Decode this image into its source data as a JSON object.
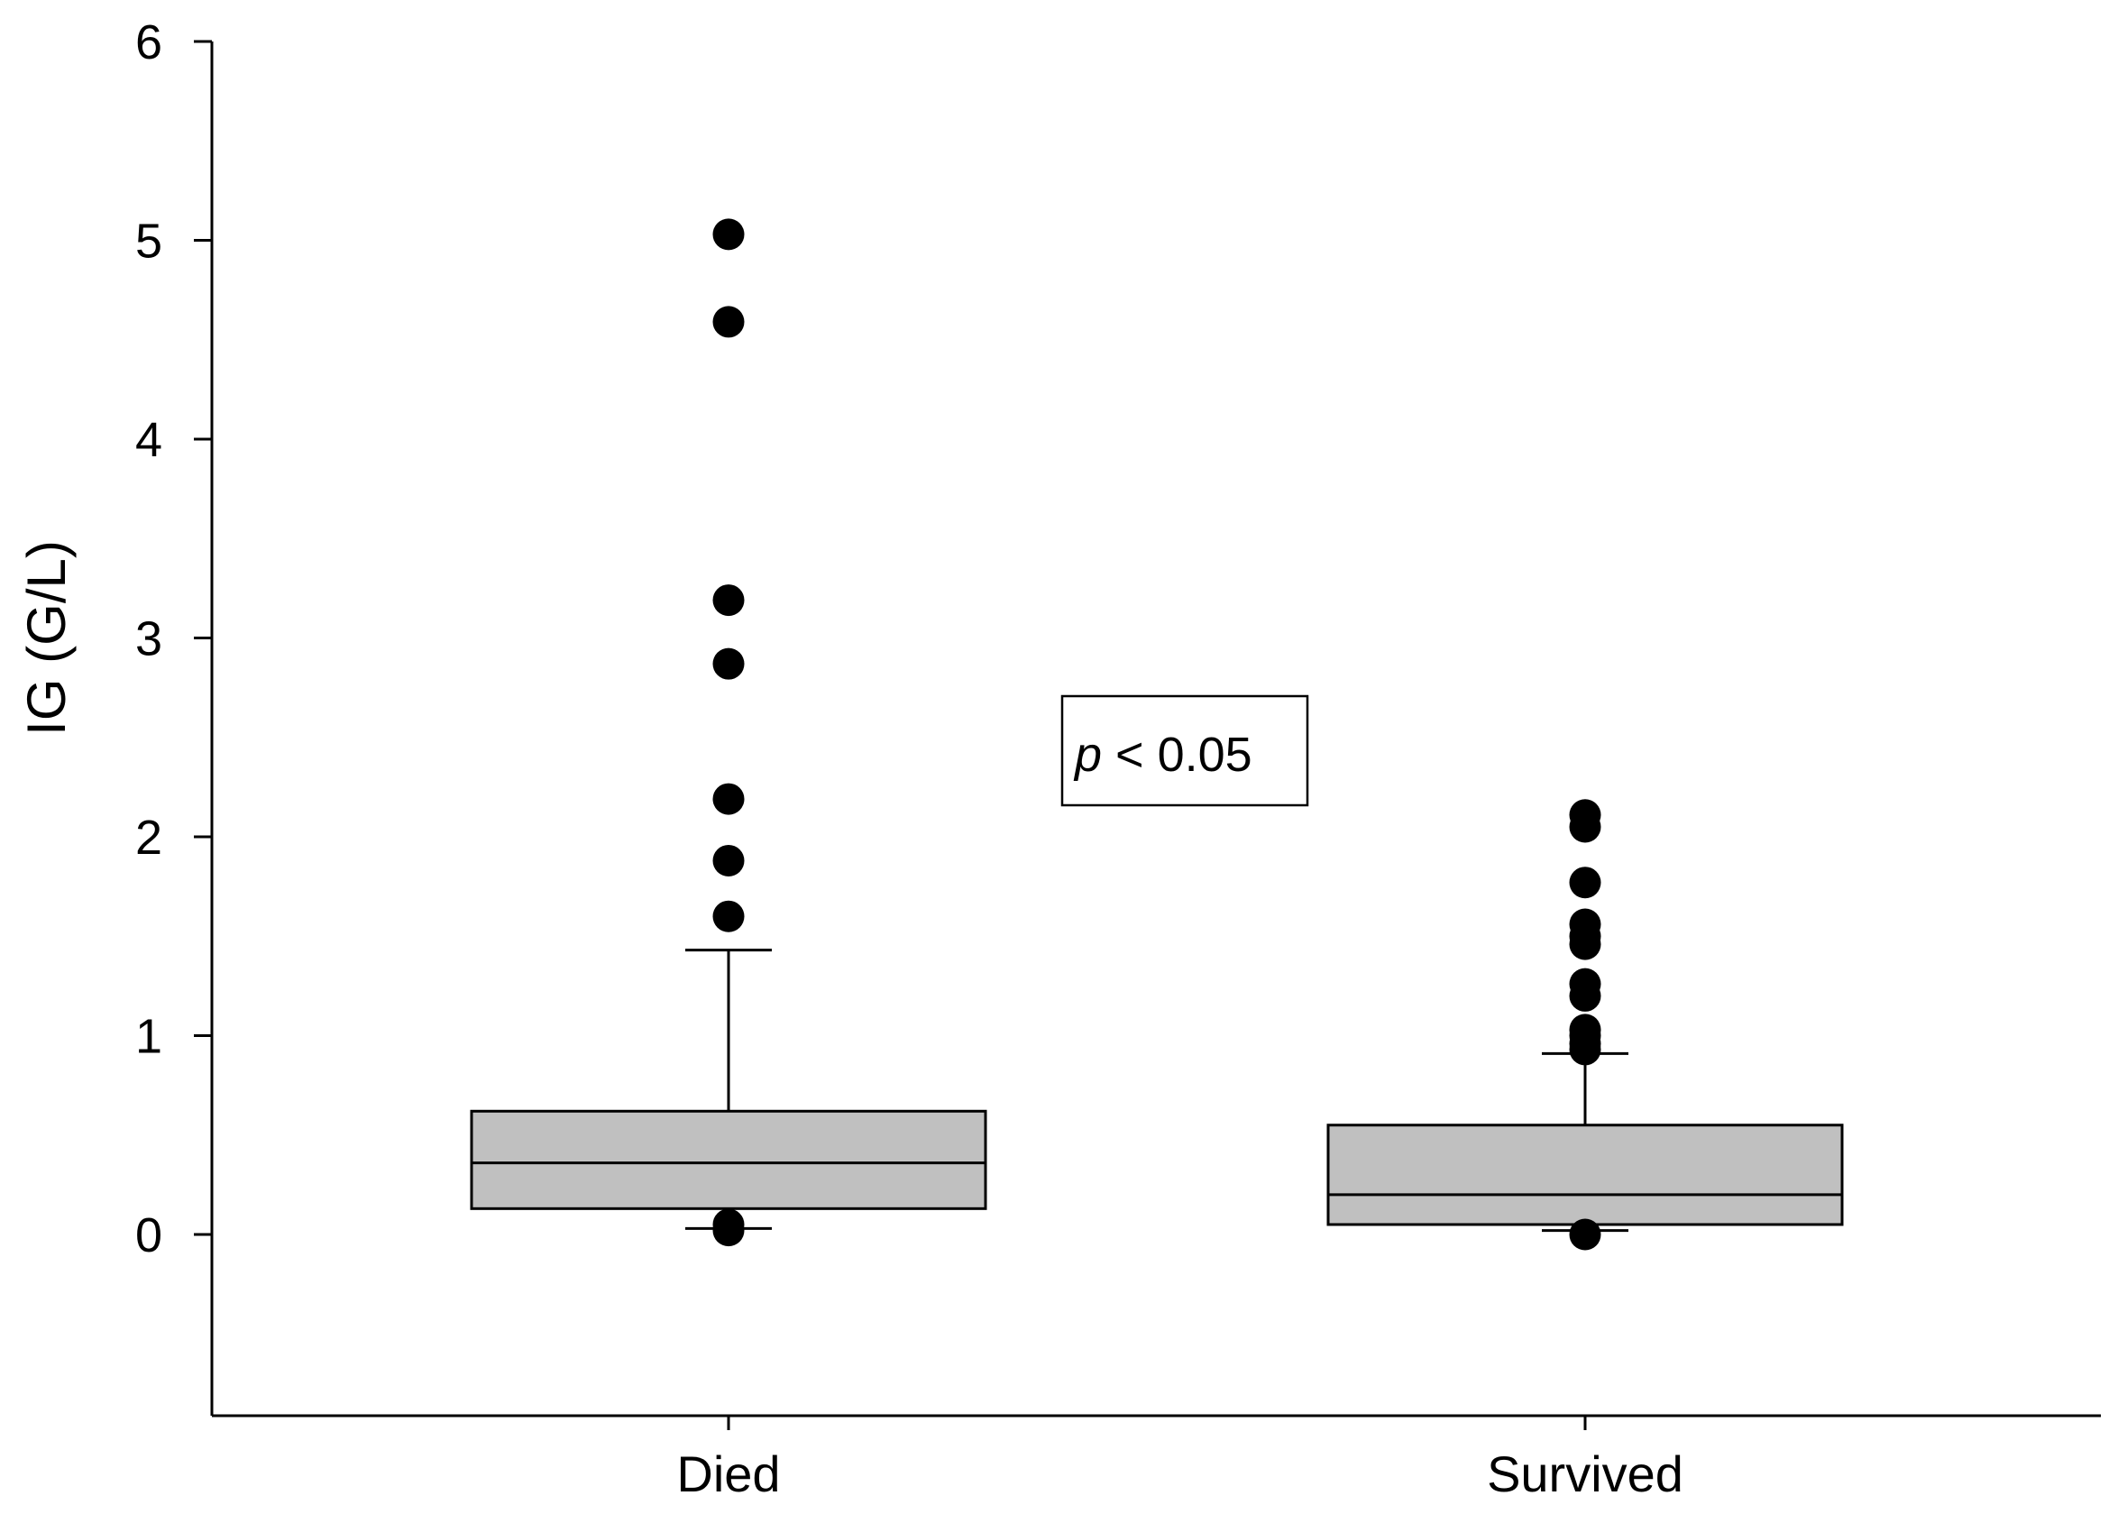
{
  "chart_data": {
    "type": "box",
    "ylabel": "IG (G/L)",
    "xlabel": "",
    "ylim": [
      -0.9,
      6
    ],
    "yticks": [
      0,
      1,
      2,
      3,
      4,
      5,
      6
    ],
    "ytick_labels": [
      "0",
      "1",
      "2",
      "3",
      "4",
      "5",
      "6"
    ],
    "categories": [
      "Died",
      "Survived"
    ],
    "grid": false,
    "colors": {
      "box_fill": "#c0c0c0",
      "line": "#000000",
      "outlier": "#000000"
    },
    "boxes": [
      {
        "category": "Died",
        "whisker_low": 0.03,
        "q1": 0.13,
        "median": 0.36,
        "q3": 0.62,
        "whisker_high": 1.43,
        "outliers": [
          5.03,
          4.59,
          3.19,
          2.87,
          2.19,
          1.88,
          1.6,
          0.05,
          0.02
        ]
      },
      {
        "category": "Survived",
        "whisker_low": 0.02,
        "q1": 0.05,
        "median": 0.2,
        "q3": 0.55,
        "whisker_high": 0.91,
        "outliers": [
          2.11,
          2.05,
          1.77,
          1.56,
          1.5,
          1.46,
          1.26,
          1.2,
          1.03,
          1.0,
          0.96,
          0.93,
          0.0
        ]
      }
    ],
    "annotation": {
      "italic": "p",
      "text": " < 0.05"
    }
  }
}
